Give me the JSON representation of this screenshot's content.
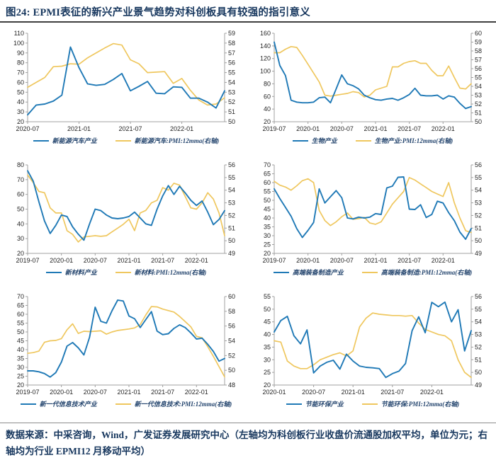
{
  "page": {
    "title": "图24:  EPMI表征的新兴产业景气趋势对科创板具有较强的指引意义",
    "source_note": "数据来源：中采咨询，Wind，广发证券发展研究中心（左轴均为科创板行业收盘价流通股加权平均，单位为元；右轴均为行业 EPMI12 月移动平均）"
  },
  "colors": {
    "blue": "#1F79B6",
    "yellow": "#EFC75E",
    "title_navy": "#17375E",
    "axis_line": "#A0A0A0",
    "tick_text": "#262626",
    "rule_dark": "#3F3F3F",
    "rule_light": "#8C8C8C"
  },
  "chart_data": [
    {
      "type": "line",
      "name": "新能源汽车",
      "left_axis": {
        "min": 20,
        "max": 110,
        "step": 10
      },
      "right_axis": {
        "min": 50,
        "max": 59,
        "step": 1
      },
      "x_ticks": [
        {
          "label": "2020-07",
          "i": 0
        },
        {
          "label": "2021-01",
          "i": 6
        },
        {
          "label": "2021-07",
          "i": 12
        },
        {
          "label": "2022-01",
          "i": 18
        }
      ],
      "series": [
        {
          "name": "新能源汽车产业",
          "axis": "left",
          "color_key": "blue",
          "values": [
            27,
            37,
            38,
            41,
            47,
            96,
            75,
            58.5,
            57,
            58,
            63,
            69,
            51.5,
            56,
            61,
            49,
            48.5,
            55.5,
            55,
            44,
            44,
            40,
            34,
            51.5
          ]
        },
        {
          "name": "新能源汽车:PMI:12mma(右轴)",
          "axis": "right",
          "color_key": "yellow",
          "values": [
            53.5,
            54,
            54.5,
            55.6,
            55.65,
            55.9,
            55.85,
            56.5,
            57,
            57.5,
            57.95,
            57.8,
            56.3,
            55.9,
            55,
            55.05,
            55.1,
            53.9,
            54.4,
            53.2,
            52.2,
            51.7,
            51.8,
            52.45
          ]
        }
      ]
    },
    {
      "type": "line",
      "name": "生物",
      "left_axis": {
        "min": 20,
        "max": 160,
        "step": 20
      },
      "right_axis": {
        "min": 50,
        "max": 60,
        "step": 1
      },
      "x_ticks": [
        {
          "label": "2019-07",
          "i": 0
        },
        {
          "label": "2020-01",
          "i": 6
        },
        {
          "label": "2020-07",
          "i": 12
        },
        {
          "label": "2021-01",
          "i": 18
        },
        {
          "label": "2021-07",
          "i": 24
        },
        {
          "label": "2022-01",
          "i": 30
        }
      ],
      "series": [
        {
          "name": "生物产业",
          "axis": "left",
          "color_key": "blue",
          "values": [
            146,
            109,
            93,
            54,
            51,
            50,
            50,
            51,
            58,
            59,
            50,
            72,
            94,
            80,
            77,
            72,
            62,
            58,
            55,
            54,
            56,
            57,
            54,
            58,
            63,
            73,
            62,
            61,
            61,
            62,
            56,
            61,
            59,
            49,
            41,
            44
          ]
        },
        {
          "name": "生物产业:PMI:12mma(右轴)",
          "axis": "right",
          "color_key": "yellow",
          "values": [
            57.8,
            57.8,
            58.2,
            58.5,
            58.4,
            57.5,
            56.5,
            55.5,
            54.5,
            53,
            52.9,
            53,
            53.1,
            53.2,
            53.4,
            53.3,
            52.8,
            53,
            53.6,
            53.8,
            54,
            56.2,
            56.2,
            56.6,
            56.8,
            56.9,
            56.6,
            56.6,
            55.8,
            55.2,
            55.2,
            56.3,
            55,
            53.8,
            53.7,
            54.3
          ]
        }
      ]
    },
    {
      "type": "line",
      "name": "新材料",
      "left_axis": {
        "min": 20,
        "max": 80,
        "step": 10
      },
      "right_axis": {
        "min": 49,
        "max": 56,
        "step": 1
      },
      "x_ticks": [
        {
          "label": "2019-07",
          "i": 0
        },
        {
          "label": "2020-01",
          "i": 6
        },
        {
          "label": "2020-07",
          "i": 12
        },
        {
          "label": "2021-01",
          "i": 18
        },
        {
          "label": "2021-07",
          "i": 24
        },
        {
          "label": "2022-01",
          "i": 30
        }
      ],
      "series": [
        {
          "name": "新材料产业",
          "axis": "left",
          "color_key": "blue",
          "values": [
            76,
            69,
            55,
            42,
            33.5,
            39,
            46,
            45,
            38,
            33,
            29,
            40,
            50,
            49,
            46,
            44,
            43.5,
            44,
            45,
            48,
            44,
            40,
            39,
            50,
            59,
            66,
            60,
            65.5,
            61,
            56,
            52.5,
            55.5,
            48,
            39.5,
            43,
            49
          ]
        },
        {
          "name": "新材料:PMI:12mma(右轴)",
          "axis": "right",
          "color_key": "yellow",
          "values": [
            55.2,
            54.6,
            53.9,
            53.8,
            52.6,
            52.2,
            52.2,
            50.8,
            50.5,
            49.9,
            50.3,
            50.35,
            50.4,
            50.35,
            50.4,
            50.7,
            51,
            51.3,
            51.7,
            50.8,
            52.2,
            52.4,
            53,
            53.2,
            54.2,
            54,
            54.55,
            54.4,
            53.5,
            52.6,
            52.5,
            53,
            53.8,
            53.3,
            52.2,
            50.4
          ]
        }
      ]
    },
    {
      "type": "line",
      "name": "高端装备制造",
      "left_axis": {
        "min": 20,
        "max": 70,
        "step": 5
      },
      "right_axis": {
        "min": 49,
        "max": 56,
        "step": 1
      },
      "x_ticks": [
        {
          "label": "2019-07",
          "i": 0
        },
        {
          "label": "2020-01",
          "i": 6
        },
        {
          "label": "2020-07",
          "i": 12
        },
        {
          "label": "2021-01",
          "i": 18
        },
        {
          "label": "2021-07",
          "i": 24
        },
        {
          "label": "2022-01",
          "i": 30
        }
      ],
      "series": [
        {
          "name": "高端装备制造产业",
          "axis": "left",
          "color_key": "blue",
          "values": [
            56.5,
            51,
            46,
            41,
            34,
            29,
            33,
            37.5,
            56.5,
            48.5,
            52,
            55.5,
            51.5,
            40,
            39.5,
            40.5,
            40,
            40.5,
            42.5,
            42,
            57,
            58,
            63,
            63.2,
            45,
            44.8,
            47.5,
            40.3,
            42,
            49.5,
            48.5,
            43,
            38.5,
            32,
            28,
            34
          ]
        },
        {
          "name": "高端装备制造:PMI:12mma(右轴)",
          "axis": "right",
          "color_key": "yellow",
          "values": [
            54.7,
            54.4,
            54.25,
            54,
            54.35,
            54.75,
            54.9,
            54.6,
            52.4,
            51.6,
            51.2,
            51.5,
            51.9,
            52.2,
            51.7,
            51.75,
            51.85,
            51.4,
            51.3,
            51.5,
            52.2,
            52.9,
            53.4,
            53.9,
            55,
            54.8,
            54.5,
            54.2,
            53.9,
            53.7,
            53.5,
            54.6,
            53,
            51.8,
            50.8,
            50.65
          ]
        }
      ]
    },
    {
      "type": "line",
      "name": "新一代信息技术",
      "left_axis": {
        "min": 20,
        "max": 70,
        "step": 5
      },
      "right_axis": {
        "min": 48,
        "max": 60,
        "step": 2
      },
      "x_ticks": [
        {
          "label": "2019-07",
          "i": 0
        },
        {
          "label": "2020-01",
          "i": 6
        },
        {
          "label": "2020-07",
          "i": 12
        },
        {
          "label": "2021-01",
          "i": 18
        },
        {
          "label": "2021-07",
          "i": 24
        },
        {
          "label": "2022-01",
          "i": 30
        }
      ],
      "series": [
        {
          "name": "新一代信息技术产业",
          "axis": "left",
          "color_key": "blue",
          "values": [
            28,
            28,
            27.5,
            26.5,
            24.5,
            27,
            33,
            42,
            44,
            41,
            37,
            47,
            64,
            56,
            55,
            62,
            68,
            67.5,
            59,
            57.5,
            52.5,
            57,
            61.5,
            50.5,
            48.5,
            49,
            52,
            54,
            52.5,
            49.5,
            46,
            46.5,
            43,
            39,
            33.5,
            35
          ]
        },
        {
          "name": "新一代信息技术:PMI:12mma(右轴)",
          "axis": "right",
          "color_key": "yellow",
          "values": [
            52.3,
            52.4,
            52.6,
            53.8,
            54,
            54.05,
            54.3,
            55.5,
            56.3,
            55,
            55.3,
            55.25,
            55.3,
            55.35,
            54.9,
            55.2,
            55.4,
            55.5,
            55.6,
            55.75,
            56.2,
            57.5,
            58.65,
            58.6,
            58.3,
            58.1,
            57.9,
            57.3,
            56.6,
            55.9,
            54.6,
            54.4,
            53.2,
            51.9,
            50.5,
            49.1
          ]
        }
      ]
    },
    {
      "type": "line",
      "name": "节能环保",
      "left_axis": {
        "min": 20,
        "max": 55,
        "step": 5
      },
      "right_axis": {
        "min": 49,
        "max": 56,
        "step": 1
      },
      "x_ticks": [
        {
          "label": "2020-01",
          "i": 0
        },
        {
          "label": "2020-07",
          "i": 6
        },
        {
          "label": "2021-01",
          "i": 12
        },
        {
          "label": "2021-07",
          "i": 18
        },
        {
          "label": "2022-01",
          "i": 24
        }
      ],
      "series": [
        {
          "name": "节能环保产业",
          "axis": "left",
          "color_key": "blue",
          "values": [
            41,
            45.5,
            47.2,
            39.5,
            36.3,
            41.8,
            24.8,
            27.5,
            29,
            29.8,
            26.3,
            32.2,
            29.5,
            27.5,
            27,
            26.8,
            26.5,
            23,
            24.5,
            25.5,
            28.5,
            41.5,
            47,
            40.7,
            52.7,
            51,
            52.8,
            45,
            49.8,
            33.5,
            41.5
          ]
        },
        {
          "name": "节能环保:PMI:12mma(右轴)",
          "axis": "right",
          "color_key": "yellow",
          "values": [
            52.5,
            52.4,
            50.9,
            50.5,
            50.3,
            50.3,
            50.6,
            51,
            51.2,
            51.4,
            51.55,
            51.3,
            51.7,
            53.6,
            54.3,
            54.7,
            54.6,
            54.55,
            54.5,
            54.5,
            54.45,
            54.5,
            53.9,
            53.4,
            53.2,
            53,
            52.9,
            52.5,
            51,
            50,
            49.6
          ]
        }
      ]
    }
  ]
}
